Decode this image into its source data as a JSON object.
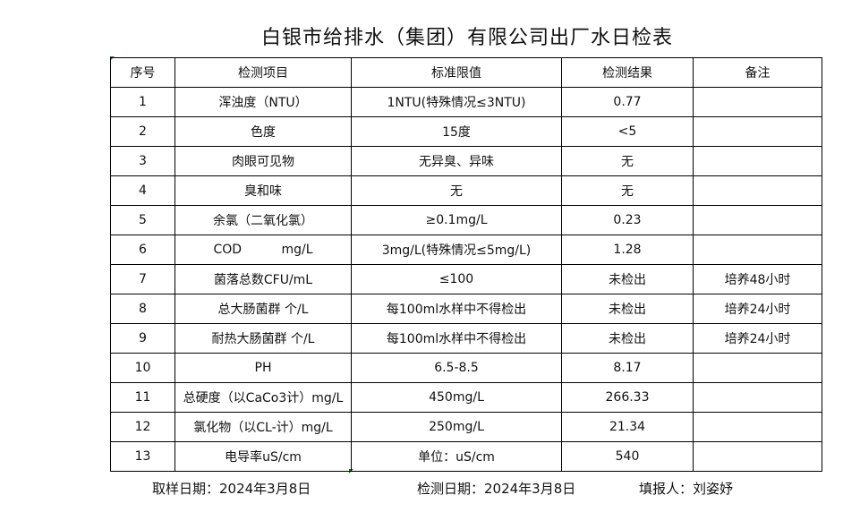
{
  "title": "白银市给排水（集团）有限公司出厂水日检表",
  "table": {
    "headers": [
      "序号",
      "检测项目",
      "标准限值",
      "检测结果",
      "备注"
    ],
    "rows": [
      [
        "1",
        "浑浊度（NTU）",
        "1NTU(特殊情况≤3NTU)",
        "0.77",
        ""
      ],
      [
        "2",
        "色度",
        "15度",
        "<5",
        ""
      ],
      [
        "3",
        "肉眼可见物",
        "无异臭、异味",
        "无",
        ""
      ],
      [
        "4",
        "臭和味",
        "无",
        "无",
        ""
      ],
      [
        "5",
        "余氯（二氧化氯）",
        "≥0.1mg/L",
        "0.23",
        ""
      ],
      [
        "6",
        "COD          mg/L",
        "3mg/L(特殊情况≤5mg/L)",
        "1.28",
        ""
      ],
      [
        "7",
        "菌落总数CFU/mL",
        "≤100",
        "未检出",
        "培养48小时"
      ],
      [
        "8",
        "总大肠菌群 个/L",
        "每100ml水样中不得检出",
        "未检出",
        "培养24小时"
      ],
      [
        "9",
        "耐热大肠菌群 个/L",
        "每100ml水样中不得检出",
        "未检出",
        "培养24小时"
      ],
      [
        "10",
        "PH",
        "6.5-8.5",
        "8.17",
        ""
      ],
      [
        "11",
        "总硬度（以CaCo3计）mg/L",
        "450mg/L",
        "266.33",
        ""
      ],
      [
        "12",
        "氯化物（以CL-计）mg/L",
        "250mg/L",
        "21.34",
        ""
      ],
      [
        "13",
        "电导率uS/cm",
        "单位：uS/cm",
        "540",
        ""
      ]
    ]
  },
  "footer": {
    "sample_date": "取样日期：2024年3月8日",
    "test_date": "检测日期：2024年3月8日",
    "filled_by": "填报人：刘姿妤"
  }
}
